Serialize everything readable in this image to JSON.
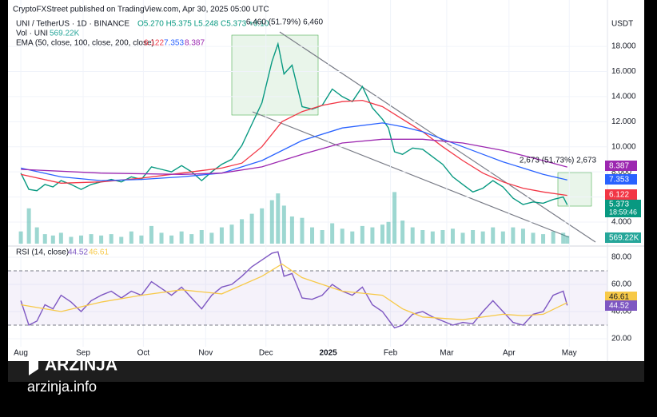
{
  "header": {
    "published": "CryptoFXStreet published on TradingView.com, Apr 30, 2025 05:00 UTC",
    "symbol": "UNI / TetherUS · 1D · BINANCE",
    "ohlc": "O5.270 H5.375 L5.248 C5.373 +0.10",
    "vol_label": "Vol · UNI",
    "vol_value": "569.22K",
    "ema_label": "EMA (50, close, 100, close, 200, close)",
    "ema50": "6.122",
    "ema100": "7.353",
    "ema200": "8.387",
    "rsi_label": "RSI (14, close)",
    "rsi_value": "44.52",
    "rsi_ma": "46.61",
    "currency": "USDT",
    "last_price": "5.373",
    "countdown": "18:59:46"
  },
  "annotations": {
    "top_move": "6,460 (51.79%) 6,460",
    "recent_move": "2,673 (51.73%) 2,673"
  },
  "watermark": {
    "brand": "ARZINJA",
    "site": "arzinja.info"
  },
  "chart_data": [
    {
      "type": "line",
      "name": "UNI / TetherUS",
      "xlim": [
        -6.4,
        292
      ],
      "ylim": [
        2.28,
        21.06
      ],
      "xticks": [
        {
          "value": 0,
          "label": "Aug"
        },
        {
          "value": 31,
          "label": "Sep"
        },
        {
          "value": 61,
          "label": "Oct"
        },
        {
          "value": 92,
          "label": "Nov"
        },
        {
          "value": 122,
          "label": "Dec"
        },
        {
          "value": 153,
          "label": "2025"
        },
        {
          "value": 184,
          "label": "Feb"
        },
        {
          "value": 212,
          "label": "Mar"
        },
        {
          "value": 243,
          "label": "Apr"
        },
        {
          "value": 273,
          "label": "May"
        }
      ],
      "yticks": [
        {
          "value": 4,
          "label": "4.000"
        },
        {
          "value": 6,
          "label": "6.000"
        },
        {
          "value": 8,
          "label": "8.000"
        },
        {
          "value": 10,
          "label": "10.000"
        },
        {
          "value": 12,
          "label": "12.000"
        },
        {
          "value": 14,
          "label": "14.000"
        },
        {
          "value": 16,
          "label": "16.000"
        },
        {
          "value": 18,
          "label": "18.000"
        }
      ],
      "series": [
        {
          "name": "Close",
          "color": "#089981",
          "x": [
            0,
            4,
            8,
            12,
            16,
            20,
            25,
            30,
            35,
            40,
            45,
            50,
            55,
            60,
            65,
            70,
            75,
            80,
            85,
            90,
            95,
            100,
            105,
            110,
            115,
            120,
            125,
            128,
            131,
            135,
            140,
            145,
            150,
            155,
            160,
            165,
            170,
            175,
            180,
            183,
            186,
            190,
            195,
            200,
            205,
            210,
            215,
            220,
            225,
            230,
            235,
            240,
            245,
            250,
            255,
            260,
            265,
            270,
            272
          ],
          "values": [
            7.9,
            6.6,
            6.5,
            7.0,
            6.8,
            7.3,
            7.0,
            6.6,
            7.0,
            7.2,
            7.4,
            7.2,
            7.6,
            7.4,
            8.4,
            8.2,
            8.0,
            8.5,
            8.0,
            7.3,
            8.0,
            8.6,
            9.0,
            10.1,
            11.8,
            13.5,
            16.8,
            18.2,
            15.8,
            16.5,
            13.2,
            13.0,
            13.3,
            14.6,
            14.0,
            13.6,
            14.8,
            13.1,
            12.2,
            11.5,
            9.6,
            9.4,
            9.9,
            9.8,
            9.2,
            8.6,
            7.6,
            7.0,
            6.4,
            6.7,
            7.3,
            6.8,
            5.9,
            5.4,
            5.6,
            5.5,
            5.8,
            6.0,
            5.373
          ]
        },
        {
          "name": "EMA 50",
          "color": "#f23645",
          "x": [
            0,
            20,
            40,
            60,
            80,
            100,
            110,
            120,
            130,
            140,
            150,
            160,
            170,
            180,
            190,
            200,
            210,
            220,
            230,
            240,
            250,
            260,
            272
          ],
          "values": [
            7.8,
            7.1,
            7.2,
            7.5,
            7.9,
            8.3,
            8.7,
            10.0,
            12.0,
            12.8,
            13.3,
            13.6,
            13.7,
            13.2,
            12.2,
            11.2,
            10.0,
            8.9,
            7.9,
            7.2,
            6.7,
            6.4,
            6.122
          ]
        },
        {
          "name": "EMA 100",
          "color": "#2962ff",
          "x": [
            0,
            20,
            40,
            60,
            80,
            100,
            120,
            140,
            160,
            180,
            190,
            200,
            210,
            220,
            230,
            240,
            250,
            260,
            272
          ],
          "values": [
            8.3,
            7.6,
            7.3,
            7.4,
            7.6,
            7.9,
            8.9,
            10.5,
            11.5,
            11.9,
            11.6,
            11.2,
            10.6,
            10.0,
            9.4,
            8.8,
            8.3,
            7.8,
            7.353
          ]
        },
        {
          "name": "EMA 200",
          "color": "#9c27b0",
          "x": [
            0,
            40,
            80,
            100,
            120,
            140,
            160,
            180,
            200,
            220,
            240,
            260,
            272
          ],
          "values": [
            8.2,
            7.9,
            7.8,
            7.9,
            8.4,
            9.4,
            10.3,
            10.6,
            10.6,
            10.3,
            9.7,
            8.9,
            8.387
          ]
        }
      ]
    },
    {
      "type": "bar",
      "name": "Volume",
      "color": "#26a69a",
      "x": [
        0,
        4,
        8,
        12,
        16,
        20,
        25,
        30,
        35,
        40,
        45,
        50,
        55,
        60,
        65,
        70,
        75,
        80,
        85,
        90,
        95,
        100,
        105,
        110,
        115,
        120,
        125,
        128,
        131,
        135,
        140,
        145,
        150,
        155,
        160,
        165,
        170,
        175,
        180,
        183,
        186,
        190,
        195,
        200,
        205,
        210,
        215,
        220,
        225,
        230,
        235,
        240,
        245,
        250,
        255,
        260,
        265,
        270,
        272
      ],
      "values": [
        900,
        2600,
        1200,
        700,
        600,
        800,
        500,
        600,
        700,
        600,
        700,
        500,
        900,
        600,
        1300,
        800,
        600,
        900,
        700,
        1000,
        800,
        1200,
        1400,
        1800,
        2200,
        2600,
        3200,
        3700,
        2800,
        2000,
        1900,
        1200,
        1000,
        1500,
        1100,
        900,
        1300,
        1200,
        1400,
        1600,
        3800,
        1700,
        1200,
        1000,
        900,
        1000,
        1100,
        800,
        1000,
        900,
        1200,
        900,
        1200,
        1100,
        800,
        700,
        900,
        800,
        569.22
      ]
    },
    {
      "type": "line",
      "name": "RSI",
      "xlim": [
        -6.4,
        292
      ],
      "ylim": [
        10.6,
        85.9
      ],
      "yticks": [
        {
          "value": 20,
          "label": "20.00"
        },
        {
          "value": 40,
          "label": "40.00"
        },
        {
          "value": 60,
          "label": "60.00"
        },
        {
          "value": 80,
          "label": "80.00"
        }
      ],
      "bands": [
        30,
        70
      ],
      "series": [
        {
          "name": "RSI",
          "color": "#7e57c2",
          "x": [
            0,
            4,
            8,
            12,
            16,
            20,
            25,
            30,
            35,
            40,
            45,
            50,
            55,
            60,
            65,
            70,
            75,
            80,
            85,
            90,
            95,
            100,
            105,
            110,
            115,
            120,
            125,
            128,
            131,
            135,
            140,
            145,
            150,
            155,
            160,
            165,
            170,
            175,
            180,
            183,
            186,
            190,
            195,
            200,
            205,
            210,
            215,
            220,
            225,
            230,
            235,
            240,
            245,
            250,
            255,
            260,
            265,
            270,
            272
          ],
          "values": [
            48,
            30,
            33,
            45,
            42,
            52,
            47,
            40,
            48,
            52,
            55,
            50,
            55,
            52,
            62,
            57,
            52,
            58,
            50,
            42,
            52,
            58,
            60,
            66,
            73,
            78,
            83,
            84,
            66,
            68,
            50,
            49,
            52,
            60,
            55,
            52,
            58,
            45,
            40,
            34,
            28,
            30,
            38,
            40,
            36,
            33,
            30,
            32,
            31,
            40,
            48,
            40,
            32,
            30,
            38,
            40,
            52,
            55,
            44.52
          ]
        },
        {
          "name": "RSI MA",
          "color": "#f7c948",
          "x": [
            0,
            20,
            40,
            60,
            80,
            100,
            120,
            130,
            140,
            160,
            180,
            190,
            200,
            220,
            240,
            250,
            260,
            272
          ],
          "values": [
            45,
            40,
            47,
            52,
            56,
            53,
            66,
            75,
            65,
            55,
            52,
            42,
            36,
            34,
            38,
            37,
            38,
            46.61
          ]
        }
      ]
    }
  ]
}
